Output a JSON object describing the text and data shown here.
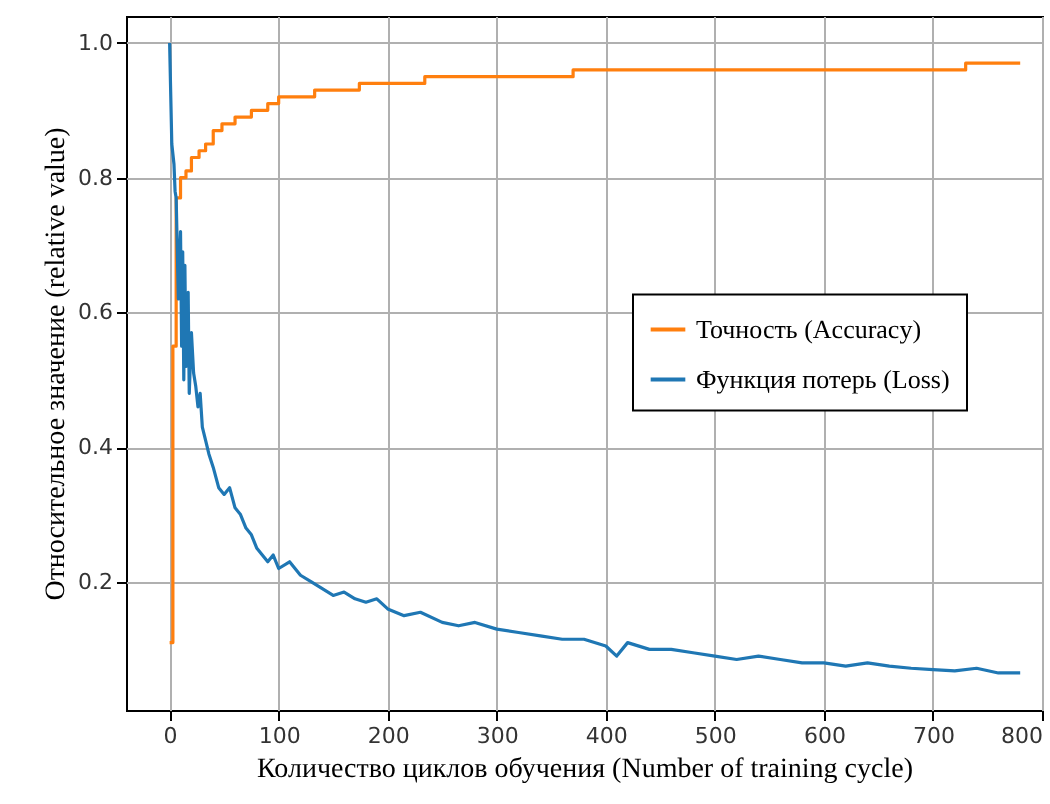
{
  "chart_data": {
    "type": "line",
    "xlabel": "Количество циклов обучения (Number of training cycle)",
    "ylabel": "Относительное значение (relative value)",
    "xlim": [
      -40,
      800
    ],
    "ylim": [
      0.01,
      1.04
    ],
    "xticks": [
      0,
      100,
      200,
      300,
      400,
      500,
      600,
      700,
      800
    ],
    "yticks": [
      0.2,
      0.4,
      0.6,
      0.8,
      {
        "value": 1,
        "label": "1.0"
      }
    ],
    "grid": true,
    "legend": "right",
    "series": [
      {
        "name": "Точность (Accuracy)",
        "color": "#ff7f0e",
        "type": "step",
        "x": [
          0,
          3,
          6,
          10,
          15,
          20,
          27,
          33,
          40,
          48,
          60,
          75,
          90,
          100,
          133,
          174,
          234,
          370,
          730,
          780
        ],
        "values": [
          0.11,
          0.55,
          0.77,
          0.8,
          0.81,
          0.83,
          0.84,
          0.85,
          0.87,
          0.88,
          0.89,
          0.9,
          0.91,
          0.92,
          0.93,
          0.94,
          0.95,
          0.96,
          0.97,
          0.97
        ]
      },
      {
        "name": "Функция потерь (Loss)",
        "color": "#1f77b4",
        "x": [
          0,
          2,
          4,
          5,
          6,
          8,
          10,
          11,
          12,
          13,
          14,
          15,
          17,
          18,
          20,
          22,
          24,
          26,
          28,
          30,
          33,
          36,
          40,
          45,
          50,
          55,
          60,
          65,
          70,
          75,
          80,
          85,
          90,
          95,
          100,
          110,
          120,
          130,
          140,
          150,
          160,
          170,
          180,
          190,
          200,
          215,
          230,
          250,
          265,
          280,
          300,
          320,
          340,
          360,
          380,
          400,
          410,
          420,
          440,
          460,
          480,
          500,
          520,
          540,
          560,
          580,
          600,
          620,
          640,
          660,
          680,
          700,
          720,
          740,
          760,
          780
        ],
        "values": [
          1.0,
          0.85,
          0.82,
          0.78,
          0.77,
          0.62,
          0.72,
          0.55,
          0.69,
          0.5,
          0.67,
          0.52,
          0.63,
          0.48,
          0.57,
          0.51,
          0.49,
          0.46,
          0.48,
          0.43,
          0.41,
          0.39,
          0.37,
          0.34,
          0.33,
          0.34,
          0.31,
          0.3,
          0.28,
          0.27,
          0.25,
          0.24,
          0.23,
          0.24,
          0.22,
          0.23,
          0.21,
          0.2,
          0.19,
          0.18,
          0.185,
          0.175,
          0.17,
          0.175,
          0.16,
          0.15,
          0.155,
          0.14,
          0.135,
          0.14,
          0.13,
          0.125,
          0.12,
          0.115,
          0.115,
          0.105,
          0.09,
          0.11,
          0.1,
          0.1,
          0.095,
          0.09,
          0.085,
          0.09,
          0.085,
          0.08,
          0.08,
          0.075,
          0.08,
          0.075,
          0.072,
          0.07,
          0.068,
          0.072,
          0.065,
          0.065
        ]
      }
    ]
  }
}
